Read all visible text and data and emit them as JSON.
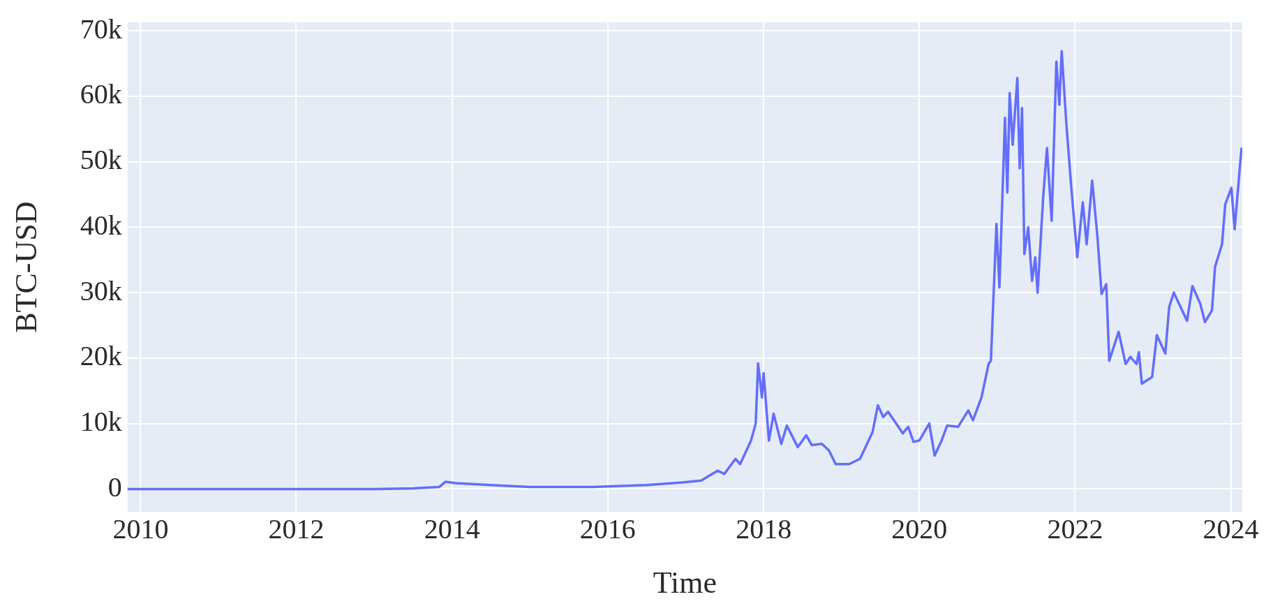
{
  "chart_data": {
    "type": "line",
    "xlabel": "Time",
    "ylabel": "BTC-USD",
    "xlim": [
      "2009-11-01",
      "2024-02-24"
    ],
    "xticks": [
      "2010",
      "2012",
      "2014",
      "2016",
      "2018",
      "2020",
      "2022",
      "2024"
    ],
    "ylim": [
      -3500,
      71300
    ],
    "yticks": [
      0,
      {
        "value": 10000,
        "label": "10k"
      },
      {
        "value": 20000,
        "label": "20k"
      },
      {
        "value": 30000,
        "label": "30k"
      },
      {
        "value": 40000,
        "label": "40k"
      },
      {
        "value": 50000,
        "label": "50k"
      },
      {
        "value": 60000,
        "label": "60k"
      },
      {
        "value": 70000,
        "label": "70k"
      }
    ],
    "grid": true,
    "legend": false,
    "marker": "none",
    "line_style": "solid",
    "series": [
      {
        "color": "#636efa",
        "x": [
          "2009-11-01",
          "2011-01-01",
          "2012-01-01",
          "2013-01-01",
          "2013-07-01",
          "2013-11-01",
          "2013-12-01",
          "2014-01-18",
          "2014-07-01",
          "2015-01-01",
          "2015-10-20",
          "2016-07-01",
          "2016-12-16",
          "2017-03-15",
          "2017-05-30",
          "2017-07-01",
          "2017-08-22",
          "2017-09-13",
          "2017-11-03",
          "2017-11-25",
          "2017-12-06",
          "2017-12-24",
          "2018-01-01",
          "2018-01-26",
          "2018-02-17",
          "2018-03-25",
          "2018-04-20",
          "2018-06-10",
          "2018-07-20",
          "2018-08-15",
          "2018-10-01",
          "2018-11-03",
          "2018-12-05",
          "2019-02-06",
          "2019-03-29",
          "2019-05-27",
          "2019-06-21",
          "2019-07-16",
          "2019-08-08",
          "2019-10-16",
          "2019-11-10",
          "2019-12-05",
          "2020-01-01",
          "2020-02-17",
          "2020-03-13",
          "2020-04-15",
          "2020-05-11",
          "2020-07-01",
          "2020-08-18",
          "2020-09-09",
          "2020-10-19",
          "2020-11-21",
          "2020-12-02",
          "2020-12-28",
          "2021-01-11",
          "2021-02-06",
          "2021-02-17",
          "2021-02-28",
          "2021-03-14",
          "2021-04-05",
          "2021-04-16",
          "2021-04-27",
          "2021-05-08",
          "2021-05-26",
          "2021-06-13",
          "2021-06-28",
          "2021-07-09",
          "2021-08-04",
          "2021-08-22",
          "2021-09-13",
          "2021-10-05",
          "2021-10-19",
          "2021-10-30",
          "2021-11-21",
          "2021-12-13",
          "2022-01-11",
          "2022-02-06",
          "2022-02-24",
          "2022-03-22",
          "2022-04-16",
          "2022-05-05",
          "2022-05-27",
          "2022-06-10",
          "2022-07-24",
          "2022-08-26",
          "2022-09-17",
          "2022-10-16",
          "2022-10-27",
          "2022-11-10",
          "2022-12-28",
          "2023-01-19",
          "2023-02-28",
          "2023-03-18",
          "2023-04-09",
          "2023-06-10",
          "2023-07-05",
          "2023-08-11",
          "2023-09-02",
          "2023-10-05",
          "2023-10-19",
          "2023-11-21",
          "2023-12-06",
          "2024-01-04",
          "2024-01-19",
          "2024-02-20"
        ],
        "values": [
          0,
          0,
          0,
          0,
          100,
          300,
          1100,
          900,
          600,
          300,
          300,
          600,
          1000,
          1300,
          2800,
          2300,
          4600,
          3800,
          7400,
          10000,
          19200,
          14000,
          17700,
          7400,
          11500,
          6900,
          9700,
          6400,
          8200,
          6700,
          6900,
          5900,
          3800,
          3800,
          4600,
          8700,
          12800,
          11000,
          11800,
          8500,
          9500,
          7200,
          7400,
          10000,
          5100,
          7400,
          9700,
          9500,
          12000,
          10500,
          14000,
          19100,
          19600,
          40500,
          30800,
          56700,
          45300,
          60500,
          52600,
          62800,
          49000,
          58200,
          35900,
          40000,
          31800,
          35400,
          30000,
          44500,
          52100,
          41000,
          65300,
          58700,
          66900,
          55700,
          46500,
          35400,
          43800,
          37400,
          47100,
          38400,
          29800,
          31300,
          19600,
          24000,
          19100,
          20200,
          19100,
          20900,
          16100,
          17100,
          23500,
          20700,
          27800,
          30000,
          25700,
          31000,
          28300,
          25500,
          27300,
          33900,
          37400,
          43500,
          46000,
          39700,
          52000
        ]
      }
    ]
  }
}
